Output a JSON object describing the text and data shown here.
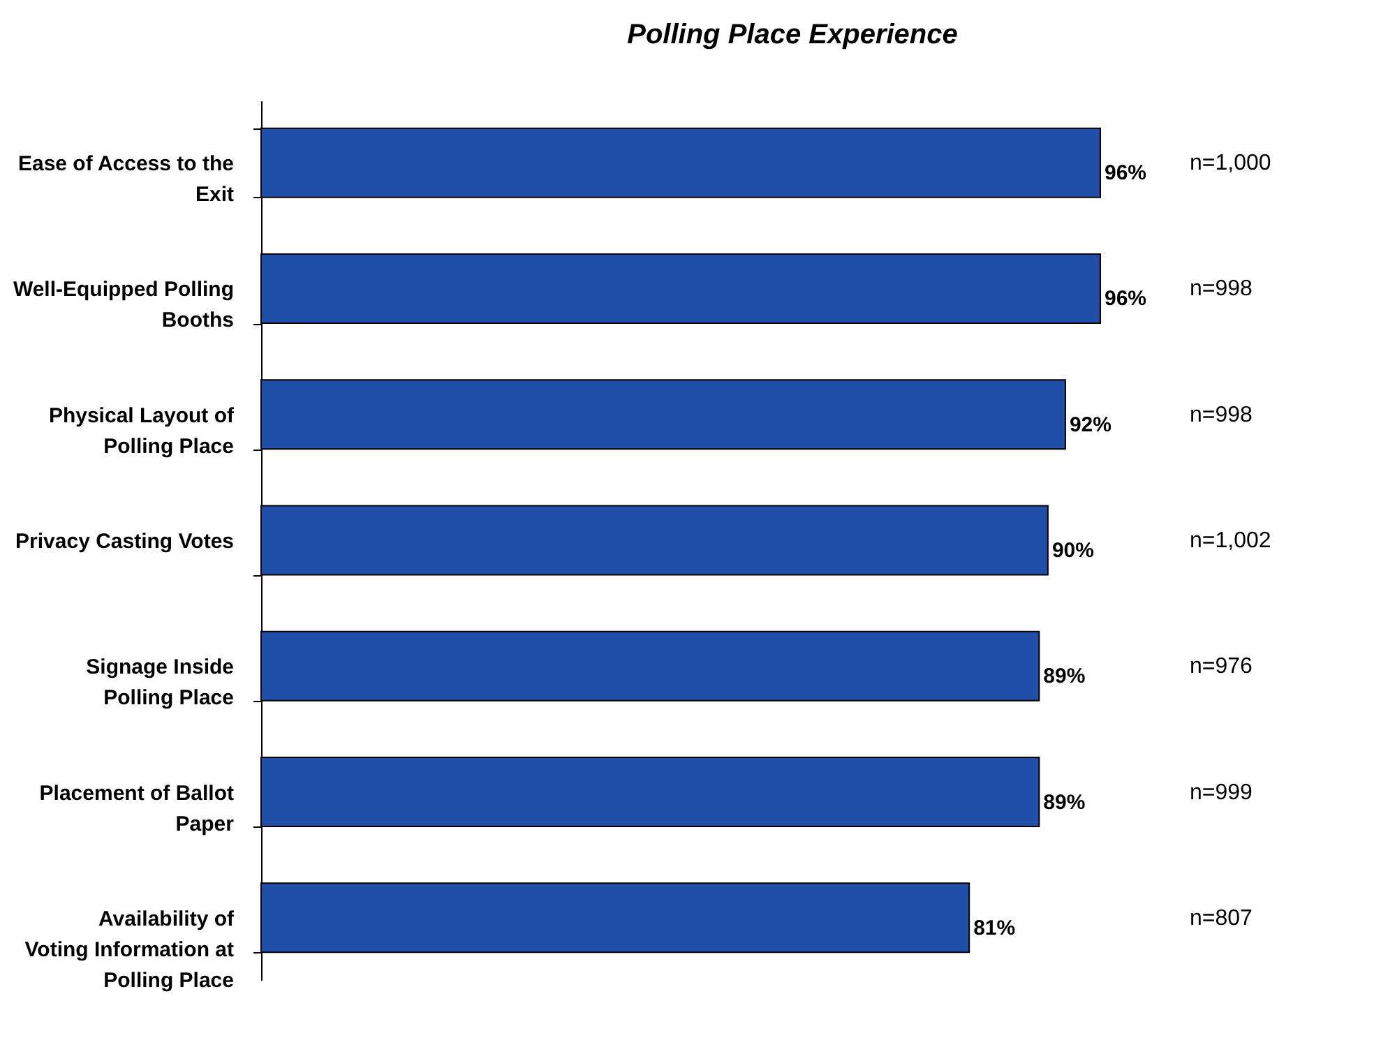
{
  "chart_data": {
    "type": "bar",
    "orientation": "horizontal",
    "title": "Polling Place Experience",
    "categories": [
      "Ease of Access to the Exit",
      "Well-Equipped Polling Booths",
      "Physical Layout of Polling Place",
      "Privacy Casting Votes",
      "Signage Inside Polling Place",
      "Placement of Ballot Paper",
      "Availability of Voting Information at Polling Place"
    ],
    "values": [
      96,
      96,
      92,
      90,
      89,
      89,
      81
    ],
    "value_labels": [
      "96%",
      "96%",
      "92%",
      "90%",
      "89%",
      "89%",
      "81%"
    ],
    "color": "#1f4fa8",
    "annotations": [
      "n=1,000",
      "n=998",
      "n=998",
      "n=1,002",
      "n=976",
      "n=999",
      "n=807"
    ]
  }
}
